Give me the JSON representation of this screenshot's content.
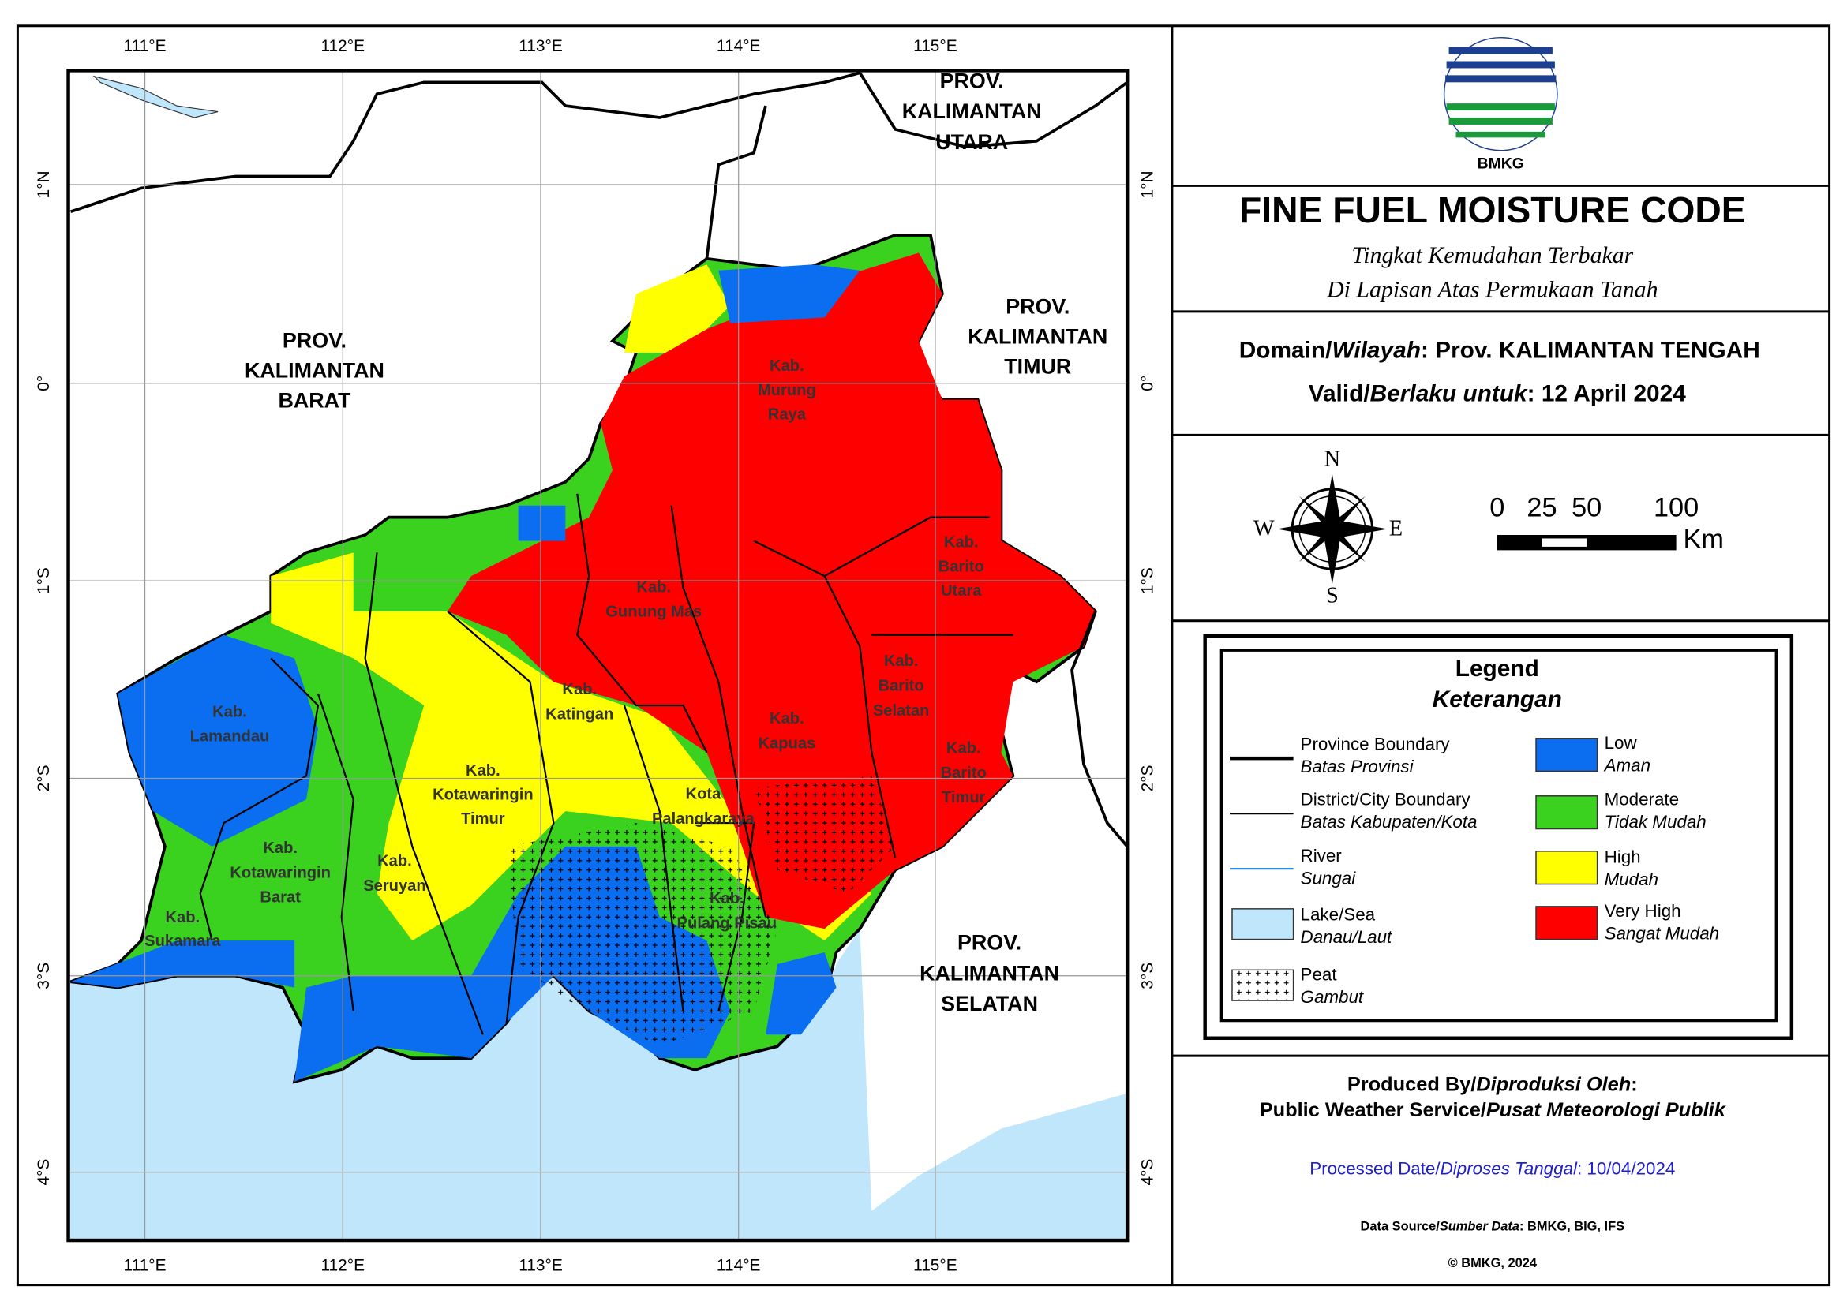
{
  "map": {
    "lon_labels": [
      "111°E",
      "112°E",
      "113°E",
      "114°E",
      "115°E"
    ],
    "lat_labels": [
      "1°N",
      "0°",
      "1°S",
      "2°S",
      "3°S",
      "4°S"
    ],
    "provinces": [
      {
        "lines": [
          "PROV.",
          "KALIMANTAN",
          "UTARA"
        ]
      },
      {
        "lines": [
          "PROV.",
          "KALIMANTAN",
          "BARAT"
        ]
      },
      {
        "lines": [
          "PROV.",
          "KALIMANTAN",
          "TIMUR"
        ]
      },
      {
        "lines": [
          "PROV.",
          "KALIMANTAN",
          "SELATAN"
        ]
      }
    ],
    "regencies": [
      {
        "lines": [
          "Kab.",
          "Murung",
          "Raya"
        ]
      },
      {
        "lines": [
          "Kab.",
          "Barito",
          "Utara"
        ]
      },
      {
        "lines": [
          "Kab.",
          "Gunung Mas"
        ]
      },
      {
        "lines": [
          "Kab.",
          "Katingan"
        ]
      },
      {
        "lines": [
          "Kab.",
          "Barito",
          "Selatan"
        ]
      },
      {
        "lines": [
          "Kab.",
          "Kapuas"
        ]
      },
      {
        "lines": [
          "Kab.",
          "Barito",
          "Timur"
        ]
      },
      {
        "lines": [
          "Kab.",
          "Lamandau"
        ]
      },
      {
        "lines": [
          "Kab.",
          "Kotawaringin",
          "Timur"
        ]
      },
      {
        "lines": [
          "Kota",
          "Palangkaraya"
        ]
      },
      {
        "lines": [
          "Kab.",
          "Kotawaringin",
          "Barat"
        ]
      },
      {
        "lines": [
          "Kab.",
          "Seruyan"
        ]
      },
      {
        "lines": [
          "Kab.",
          "Pulang Pisau"
        ]
      },
      {
        "lines": [
          "Kab.",
          "Sukamara"
        ]
      }
    ]
  },
  "header": {
    "logo_text": "BMKG",
    "title": "FINE FUEL MOISTURE CODE",
    "subtitle": [
      "Tingkat Kemudahan Terbakar",
      "Di Lapisan Atas Permukaan Tanah"
    ],
    "domain": [
      "Domain/",
      "Wilayah",
      ": Prov. KALIMANTAN TENGAH"
    ],
    "valid": [
      "Valid/",
      "Berlaku untuk",
      ": 12 April 2024"
    ]
  },
  "compass": {
    "n": "N",
    "s": "S",
    "e": "E",
    "w": "W"
  },
  "scale": {
    "ticks": [
      "0",
      "25",
      "50",
      "100"
    ],
    "unit": "Km"
  },
  "legend": {
    "title": "Legend",
    "subtitle": "Keterangan",
    "items": [
      {
        "label": "Province Boundary",
        "sublabel": "Batas Provinsi"
      },
      {
        "label": "District/City Boundary",
        "sublabel": "Batas Kabupaten/Kota"
      },
      {
        "label": "River",
        "sublabel": "Sungai"
      },
      {
        "label": "Lake/Sea",
        "sublabel": "Danau/Laut"
      },
      {
        "label": "Peat",
        "sublabel": "Gambut"
      },
      {
        "label": "Low",
        "sublabel": "Aman"
      },
      {
        "label": "Moderate",
        "sublabel": "Tidak Mudah"
      },
      {
        "label": "High",
        "sublabel": "Mudah"
      },
      {
        "label": "Very High",
        "sublabel": "Sangat Mudah"
      }
    ]
  },
  "footer": {
    "produced": [
      "Produced By/",
      "Diproduksi Oleh",
      ":"
    ],
    "producer": [
      "Public Weather Service/",
      "Pusat Meteorologi Publik"
    ],
    "processed": [
      "Processed Date/",
      "Diproses Tanggal",
      ": 10/04/2024"
    ],
    "source": [
      "Data Source/",
      "Sumber Data",
      ": BMKG, BIG, IFS"
    ],
    "copyright": "© BMKG, 2024"
  }
}
